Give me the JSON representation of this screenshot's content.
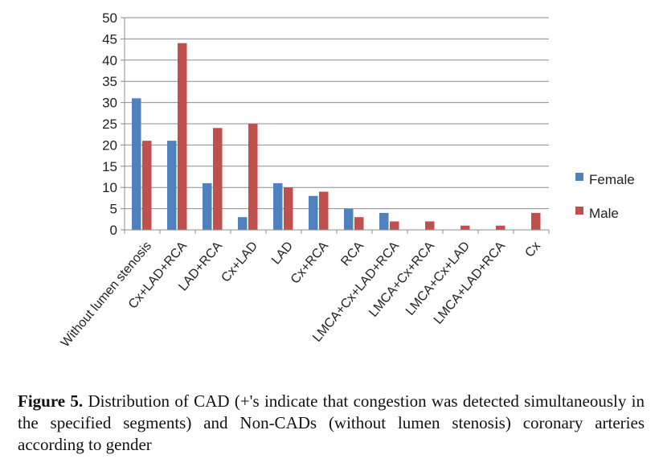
{
  "chart_data": {
    "type": "bar",
    "categories": [
      "Without lumen stenosis",
      "Cx+LAD+RCA",
      "LAD+RCA",
      "Cx+LAD",
      "LAD",
      "Cx+RCA",
      "RCA",
      "LMCA+Cx+LAD+RCA",
      "LMCA+Cx+RCA",
      "LMCA+Cx+LAD",
      "LMCA+LAD+RCA",
      "Cx"
    ],
    "series": [
      {
        "name": "Female",
        "color": "#4f81bd",
        "values": [
          31,
          21,
          11,
          3,
          11,
          8,
          5,
          4,
          0,
          0,
          0,
          0
        ]
      },
      {
        "name": "Male",
        "color": "#c0504d",
        "values": [
          21,
          44,
          24,
          25,
          10,
          9,
          3,
          2,
          2,
          1,
          1,
          4
        ]
      }
    ],
    "yticks": [
      "0",
      "5",
      "10",
      "15",
      "20",
      "25",
      "30",
      "35",
      "40",
      "45",
      "50"
    ],
    "ylim": [
      0,
      50
    ],
    "grid": true,
    "legend": "right"
  },
  "caption": {
    "label": "Figure 5.",
    "text": " Distribution of CAD (+'s indicate that congestion was detected simultaneously in the specified segments) and Non-CADs (without lumen stenosis) coronary arteries according to gender"
  }
}
